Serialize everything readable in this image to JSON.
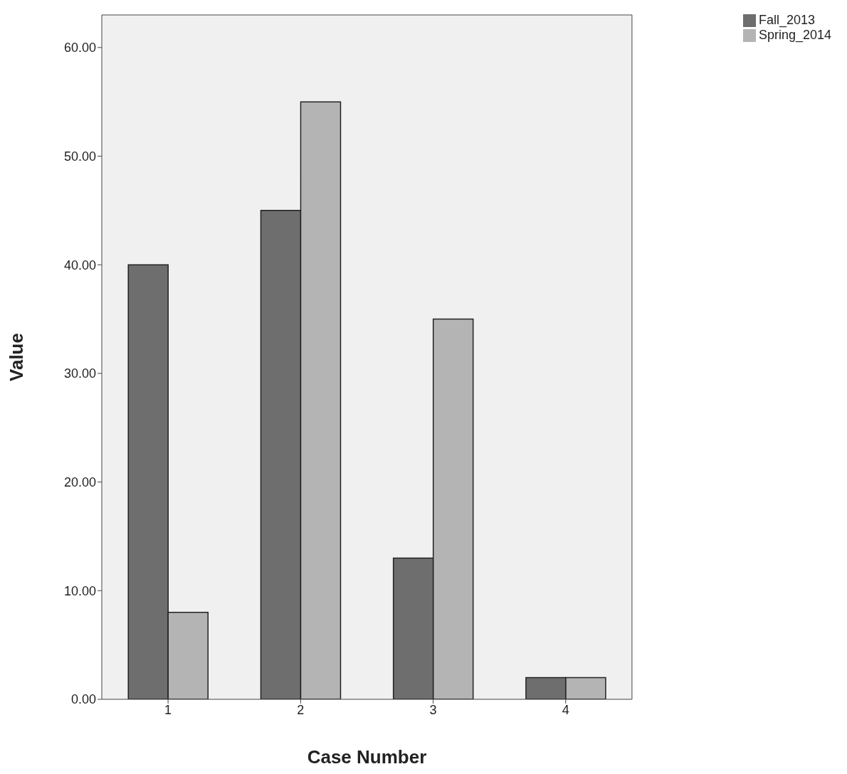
{
  "chart_data": {
    "type": "bar",
    "xlabel": "Case Number",
    "ylabel": "Value",
    "categories": [
      "1",
      "2",
      "3",
      "4"
    ],
    "series": [
      {
        "name": "Fall_2013",
        "color": "#6e6e6e",
        "values": [
          40,
          45,
          13,
          2
        ]
      },
      {
        "name": "Spring_2014",
        "color": "#b4b4b4",
        "values": [
          8,
          55,
          35,
          2
        ]
      }
    ],
    "ylim": [
      0,
      63
    ],
    "yticks": [
      {
        "value": 0,
        "label": "0.00"
      },
      {
        "value": 10,
        "label": "10.00"
      },
      {
        "value": 20,
        "label": "20.00"
      },
      {
        "value": 30,
        "label": "30.00"
      },
      {
        "value": 40,
        "label": "40.00"
      },
      {
        "value": 50,
        "label": "50.00"
      },
      {
        "value": 60,
        "label": "60.00"
      }
    ],
    "legend": "top right"
  }
}
